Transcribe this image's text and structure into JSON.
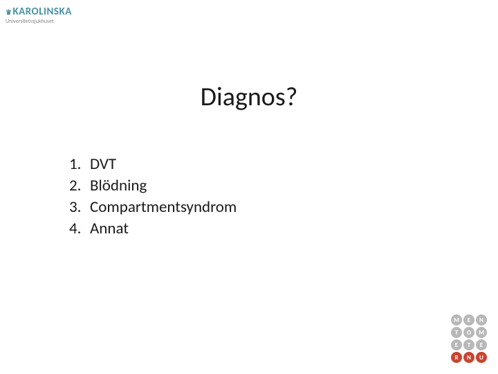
{
  "logo": {
    "main": "KAROLINSKA",
    "sub": "Universitetssjukhuset",
    "color": "#4a90a4",
    "sub_color": "#888888"
  },
  "title": "Diagnos?",
  "list": {
    "items": [
      {
        "num": "1.",
        "text": "DVT"
      },
      {
        "num": "2.",
        "text": "Blödning"
      },
      {
        "num": "3.",
        "text": "Compartmentsyndrom"
      },
      {
        "num": "4.",
        "text": "Annat"
      }
    ]
  },
  "badge": {
    "cells": [
      {
        "letter": "M",
        "color": "#b8b8b8"
      },
      {
        "letter": "E",
        "color": "#b8b8b8"
      },
      {
        "letter": "N",
        "color": "#b8b8b8"
      },
      {
        "letter": "T",
        "color": "#b8b8b8"
      },
      {
        "letter": "O",
        "color": "#b8b8b8"
      },
      {
        "letter": "M",
        "color": "#b8b8b8"
      },
      {
        "letter": "E",
        "color": "#b8b8b8"
      },
      {
        "letter": "T",
        "color": "#b8b8b8"
      },
      {
        "letter": "E",
        "color": "#b8b8b8"
      },
      {
        "letter": "R",
        "color": "#c8442f"
      },
      {
        "letter": "N",
        "color": "#c8442f"
      },
      {
        "letter": "U",
        "color": "#c8442f"
      }
    ],
    "grid_cols": 3
  },
  "colors": {
    "background": "#ffffff",
    "text": "#1a1a1a"
  }
}
